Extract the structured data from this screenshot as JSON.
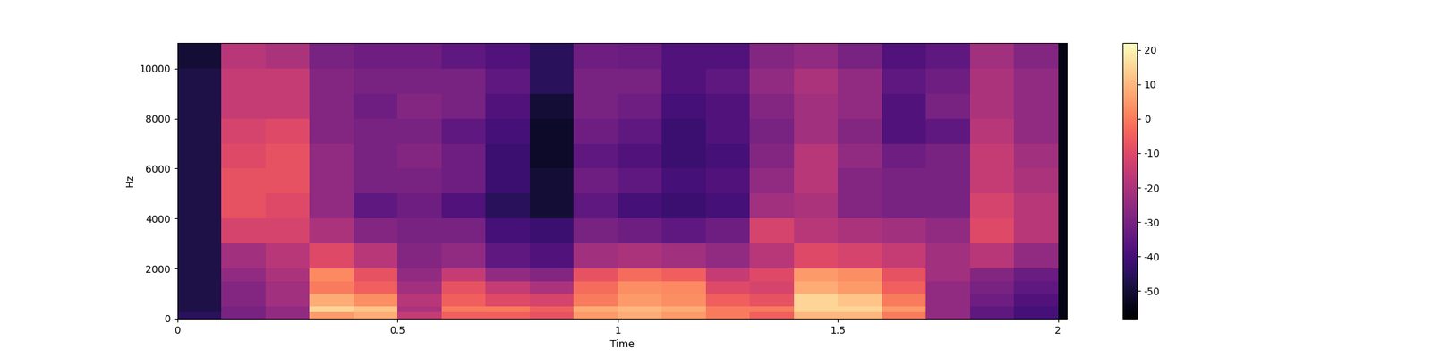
{
  "chart_data": {
    "type": "heatmap",
    "xlabel": "Time",
    "ylabel": "Hz",
    "x_edges": [
      0,
      0.1,
      0.2,
      0.3,
      0.4,
      0.5,
      0.6,
      0.7,
      0.8,
      0.9,
      1.0,
      1.1,
      1.2,
      1.3,
      1.4,
      1.5,
      1.6,
      1.7,
      1.8,
      1.9,
      2.0,
      2.02
    ],
    "y_edges": [
      0,
      250,
      500,
      1000,
      1500,
      2000,
      3000,
      4000,
      5000,
      6000,
      7000,
      8000,
      9000,
      10000,
      11025
    ],
    "cells": [
      [
        -45,
        -30,
        -25,
        5,
        8,
        -15,
        -5,
        -5,
        -8,
        5,
        8,
        5,
        0,
        -5,
        10,
        10,
        0,
        -25,
        -35,
        -40,
        -55
      ],
      [
        -48,
        -30,
        -25,
        15,
        12,
        -20,
        0,
        0,
        -5,
        8,
        10,
        8,
        0,
        0,
        15,
        15,
        5,
        -25,
        -35,
        -40,
        -55
      ],
      [
        -48,
        -28,
        -22,
        8,
        3,
        -18,
        -5,
        -10,
        -12,
        0,
        5,
        3,
        -5,
        -8,
        15,
        12,
        0,
        -25,
        -32,
        -38,
        -55
      ],
      [
        -48,
        -28,
        -22,
        0,
        -5,
        -22,
        -8,
        -15,
        -20,
        -3,
        3,
        2,
        -10,
        -12,
        8,
        5,
        -5,
        -25,
        -30,
        -35,
        -55
      ],
      [
        -48,
        -25,
        -20,
        2,
        -8,
        -25,
        -15,
        -25,
        -28,
        -8,
        -3,
        -5,
        -15,
        -10,
        5,
        3,
        -8,
        -22,
        -28,
        -33,
        -55
      ],
      [
        -48,
        -22,
        -18,
        -10,
        -18,
        -28,
        -25,
        -35,
        -38,
        -22,
        -20,
        -22,
        -25,
        -18,
        -10,
        -12,
        -15,
        -22,
        -18,
        -25,
        -55
      ],
      [
        -48,
        -12,
        -12,
        -20,
        -28,
        -30,
        -30,
        -40,
        -42,
        -30,
        -32,
        -35,
        -32,
        -12,
        -18,
        -20,
        -22,
        -25,
        -10,
        -18,
        -55
      ],
      [
        -48,
        -8,
        -10,
        -25,
        -35,
        -32,
        -38,
        -45,
        -50,
        -35,
        -40,
        -42,
        -40,
        -22,
        -20,
        -28,
        -30,
        -30,
        -12,
        -18,
        -55
      ],
      [
        -48,
        -8,
        -8,
        -25,
        -30,
        -30,
        -32,
        -42,
        -50,
        -32,
        -35,
        -40,
        -38,
        -25,
        -18,
        -28,
        -30,
        -30,
        -15,
        -20,
        -55
      ],
      [
        -48,
        -10,
        -8,
        -25,
        -30,
        -28,
        -32,
        -42,
        -52,
        -35,
        -38,
        -42,
        -40,
        -28,
        -18,
        -25,
        -32,
        -30,
        -15,
        -22,
        -55
      ],
      [
        -48,
        -12,
        -10,
        -28,
        -30,
        -30,
        -35,
        -40,
        -52,
        -32,
        -35,
        -42,
        -38,
        -30,
        -22,
        -28,
        -38,
        -35,
        -18,
        -25,
        -55
      ],
      [
        -48,
        -15,
        -15,
        -28,
        -32,
        -28,
        -30,
        -38,
        -50,
        -30,
        -32,
        -40,
        -38,
        -28,
        -22,
        -25,
        -38,
        -30,
        -20,
        -25,
        -55
      ],
      [
        -48,
        -15,
        -15,
        -28,
        -30,
        -30,
        -30,
        -35,
        -45,
        -30,
        -30,
        -38,
        -35,
        -25,
        -20,
        -25,
        -35,
        -32,
        -20,
        -25,
        -55
      ],
      [
        -50,
        -18,
        -20,
        -30,
        -32,
        -32,
        -35,
        -38,
        -45,
        -32,
        -33,
        -38,
        -38,
        -28,
        -25,
        -30,
        -38,
        -35,
        -22,
        -28,
        -55
      ]
    ],
    "xlim": [
      0,
      2.02
    ],
    "ylim": [
      0,
      11025
    ],
    "xticks": [
      0,
      0.5,
      1,
      1.5,
      2
    ],
    "yticks": [
      0,
      2000,
      4000,
      6000,
      8000,
      10000
    ],
    "colorbar_range": [
      -58,
      22
    ],
    "colorbar_ticks": [
      -50,
      -40,
      -30,
      -20,
      -10,
      0,
      10,
      20
    ]
  }
}
